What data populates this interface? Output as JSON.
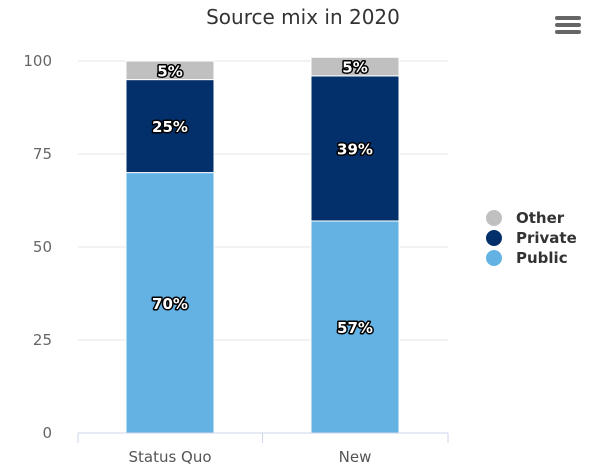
{
  "chart_data": {
    "type": "bar",
    "stacked": true,
    "title": "Source mix in 2020",
    "categories": [
      "Status Quo",
      "New"
    ],
    "series": [
      {
        "name": "Public",
        "values": [
          70,
          57
        ],
        "labels": [
          "70%",
          "57%"
        ],
        "color": "#63b2e3"
      },
      {
        "name": "Private",
        "values": [
          25,
          39
        ],
        "labels": [
          "25%",
          "39%"
        ],
        "color": "#03306b"
      },
      {
        "name": "Other",
        "values": [
          5,
          5
        ],
        "labels": [
          "5%",
          "5%"
        ],
        "color": "#c0c0c0"
      }
    ],
    "legend": [
      "Other",
      "Private",
      "Public"
    ],
    "legend_position": "right",
    "ylim": [
      0,
      100
    ],
    "yticks": [
      "0",
      "25",
      "50",
      "75",
      "100"
    ],
    "grid": true,
    "xlabel": "",
    "ylabel": ""
  },
  "menu": {
    "icon": "hamburger-menu-icon"
  }
}
